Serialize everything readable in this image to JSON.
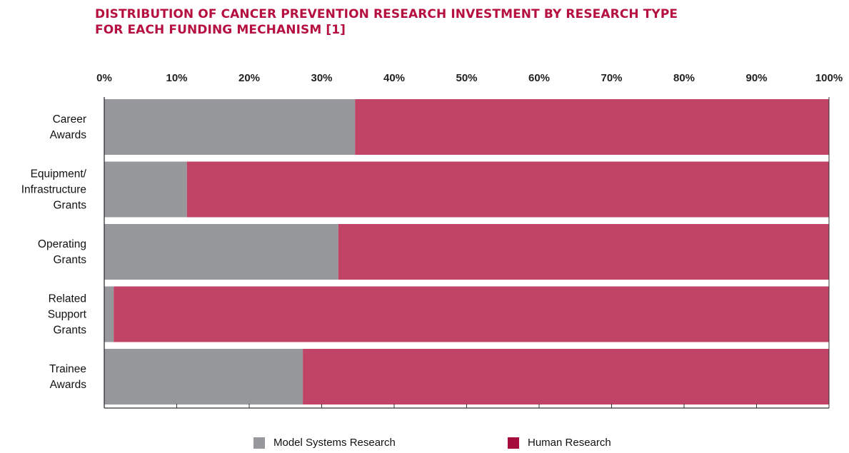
{
  "title_lines": [
    "DISTRIBUTION OF CANCER PREVENTION RESEARCH INVESTMENT BY RESEARCH TYPE",
    "FOR EACH FUNDING MECHANISM [1]"
  ],
  "colors": {
    "title": "#b5103f",
    "model": "#97989c",
    "human": "#c14466",
    "human_legend": "#a50d3c"
  },
  "chart_data": {
    "type": "bar",
    "orientation": "horizontal",
    "stacked": true,
    "title": "DISTRIBUTION OF CANCER PREVENTION RESEARCH INVESTMENT BY RESEARCH TYPE FOR EACH FUNDING MECHANISM [1]",
    "categories": [
      [
        "Career",
        "Awards"
      ],
      [
        "Equipment/",
        "Infrastructure",
        "Grants"
      ],
      [
        "Operating",
        "Grants"
      ],
      [
        "Related",
        "Support",
        "Grants"
      ],
      [
        "Trainee",
        "Awards"
      ]
    ],
    "series": [
      {
        "name": "Model Systems Research",
        "values": [
          34.6,
          11.4,
          32.3,
          1.3,
          27.4
        ]
      },
      {
        "name": "Human Research",
        "values": [
          65.4,
          88.6,
          67.7,
          98.7,
          72.6
        ]
      }
    ],
    "x_ticks": [
      "0%",
      "10%",
      "20%",
      "30%",
      "40%",
      "50%",
      "60%",
      "70%",
      "80%",
      "90%",
      "100%"
    ],
    "xlim": [
      0,
      100
    ],
    "x_axis_position": "top",
    "grid": false,
    "legend_position": "bottom"
  },
  "legend": [
    {
      "label": "Model Systems Research",
      "color": "#97989c"
    },
    {
      "label": "Human Research",
      "color": "#a50d3c"
    }
  ]
}
